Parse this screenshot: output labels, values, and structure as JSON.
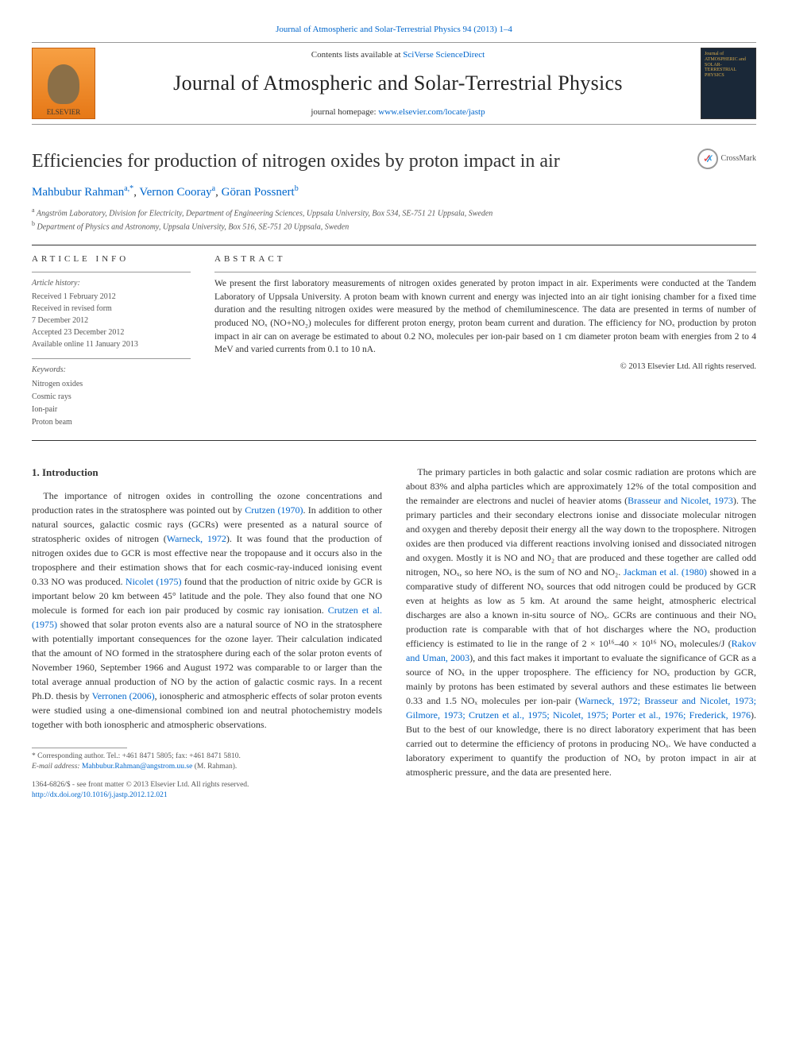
{
  "top_citation": "Journal of Atmospheric and Solar-Terrestrial Physics 94 (2013) 1–4",
  "header": {
    "contents_prefix": "Contents lists available at ",
    "contents_link": "SciVerse ScienceDirect",
    "journal_name": "Journal of Atmospheric and Solar-Terrestrial Physics",
    "homepage_prefix": "journal homepage: ",
    "homepage_url": "www.elsevier.com/locate/jastp",
    "publisher_logo_text": "ELSEVIER",
    "cover_text": "Journal of ATMOSPHERIC and SOLAR-TERRESTRIAL PHYSICS"
  },
  "paper": {
    "title": "Efficiencies for production of nitrogen oxides by proton impact in air",
    "crossmark_label": "CrossMark",
    "authors_html": "Mahbubur Rahman",
    "author1": "Mahbubur Rahman",
    "author1_sup": "a,*",
    "author2": "Vernon Cooray",
    "author2_sup": "a",
    "author3": "Göran Possnert",
    "author3_sup": "b",
    "affil_a": "Angström Laboratory, Division for Electricity, Department of Engineering Sciences, Uppsala University, Box 534, SE-751 21 Uppsala, Sweden",
    "affil_b": "Department of Physics and Astronomy, Uppsala University, Box 516, SE-751 20 Uppsala, Sweden"
  },
  "article_info": {
    "label": "ARTICLE INFO",
    "history_head": "Article history:",
    "received": "Received 1 February 2012",
    "revised1": "Received in revised form",
    "revised2": "7 December 2012",
    "accepted": "Accepted 23 December 2012",
    "online": "Available online 11 January 2013",
    "keywords_head": "Keywords:",
    "kw1": "Nitrogen oxides",
    "kw2": "Cosmic rays",
    "kw3": "Ion-pair",
    "kw4": "Proton beam"
  },
  "abstract": {
    "label": "ABSTRACT",
    "text": "We present the first laboratory measurements of nitrogen oxides generated by proton impact in air. Experiments were conducted at the Tandem Laboratory of Uppsala University. A proton beam with known current and energy was injected into an air tight ionising chamber for a fixed time duration and the resulting nitrogen oxides were measured by the method of chemiluminescence. The data are presented in terms of number of produced NOₓ (NO+NO₂) molecules for different proton energy, proton beam current and duration. The efficiency for NOₓ production by proton impact in air can on average be estimated to about 0.2 NOₓ molecules per ion-pair based on 1 cm diameter proton beam with energies from 2 to 4 MeV and varied currents from 0.1 to 10 nA.",
    "copyright": "© 2013 Elsevier Ltd. All rights reserved."
  },
  "body": {
    "sec1_heading": "1.  Introduction",
    "col1_p1a": "The importance of nitrogen oxides in controlling the ozone concentrations and production rates in the stratosphere was pointed out by ",
    "col1_p1_ref1": "Crutzen (1970)",
    "col1_p1b": ". In addition to other natural sources, galactic cosmic rays (GCRs) were presented as a natural source of stratospheric oxides of nitrogen (",
    "col1_p1_ref2": "Warneck, 1972",
    "col1_p1c": "). It was found that the production of nitrogen oxides due to GCR is most effective near the tropopause and it occurs also in the troposphere and their estimation shows that for each cosmic-ray-induced ionising event 0.33 NO was produced. ",
    "col1_p1_ref3": "Nicolet (1975)",
    "col1_p1d": " found that the production of nitric oxide by GCR is important below 20 km between 45° latitude and the pole. They also found that one NO molecule is formed for each ion pair produced by cosmic ray ionisation. ",
    "col1_p1_ref4": "Crutzen et al. (1975)",
    "col1_p1e": " showed that solar proton events also are a natural source of NO in the stratosphere with potentially important consequences for the ozone layer. Their calculation indicated that the amount of NO formed in the stratosphere during each of the solar proton events of November 1960, September 1966 and August 1972 was comparable to or larger than the total average annual production of NO by the action of galactic cosmic rays. In a recent Ph.D. thesis by ",
    "col1_p1_ref5": "Verronen (2006)",
    "col1_p1f": ", ionospheric and atmospheric effects of solar proton events were studied using a one-dimensional combined ion and neutral photochemistry models together with both ionospheric and atmospheric observations.",
    "col2_p1a": "The primary particles in both galactic and solar cosmic radiation are protons which are about 83% and alpha particles which are approximately 12% of the total composition and the remainder are electrons and nuclei of heavier atoms (",
    "col2_p1_ref1": "Brasseur and Nicolet, 1973",
    "col2_p1b": "). The primary particles and their secondary electrons ionise and dissociate molecular nitrogen and oxygen and thereby deposit their energy all the way down to the troposphere. Nitrogen oxides are then produced via different reactions involving ionised and dissociated nitrogen and oxygen. Mostly it is NO and NO₂ that are produced and these together are called odd nitrogen, NOₓ, so here NOₓ is the sum of NO and NO₂. ",
    "col2_p1_ref2": "Jackman et al. (1980)",
    "col2_p1c": " showed in a comparative study of different NOₓ sources that odd nitrogen could be produced by GCR even at heights as low as 5 km. At around the same height, atmospheric electrical discharges are also a known in-situ source of NOₓ. GCRs are continuous and their NOₓ production rate is comparable with that of hot discharges where the NOₓ production efficiency is estimated to lie in the range of 2 × 10¹⁶–40 × 10¹⁶ NOₓ molecules/J (",
    "col2_p1_ref3": "Rakov and Uman, 2003",
    "col2_p1d": "), and this fact makes it important to evaluate the significance of GCR as a source of NOₓ in the upper troposphere. The efficiency for NOₓ production by GCR, mainly by protons has been estimated by several authors and these estimates lie between 0.33 and 1.5 NOₓ molecules per ion-pair (",
    "col2_p1_ref4": "Warneck, 1972; Brasseur and Nicolet, 1973; Gilmore, 1973; Crutzen et al., 1975; Nicolet, 1975; Porter et al., 1976; Frederick, 1976",
    "col2_p1e": "). But to the best of our knowledge, there is no direct laboratory experiment that has been carried out to determine the efficiency of protons in producing NOₓ. We have conducted a laboratory experiment to quantify the production of NOₓ by proton impact in air at atmospheric pressure, and the data are presented here."
  },
  "footnotes": {
    "corr": "* Corresponding author. Tel.: +461 8471 5805; fax: +461 8471 5810.",
    "email_label": "E-mail address: ",
    "email": "Mahbubur.Rahman@angstrom.uu.se",
    "email_suffix": " (M. Rahman).",
    "issn": "1364-6826/$ - see front matter © 2013 Elsevier Ltd. All rights reserved.",
    "doi": "http://dx.doi.org/10.1016/j.jastp.2012.12.021"
  },
  "colors": {
    "link": "#0066cc",
    "text": "#333333",
    "muted": "#555555",
    "rule": "#999999"
  }
}
